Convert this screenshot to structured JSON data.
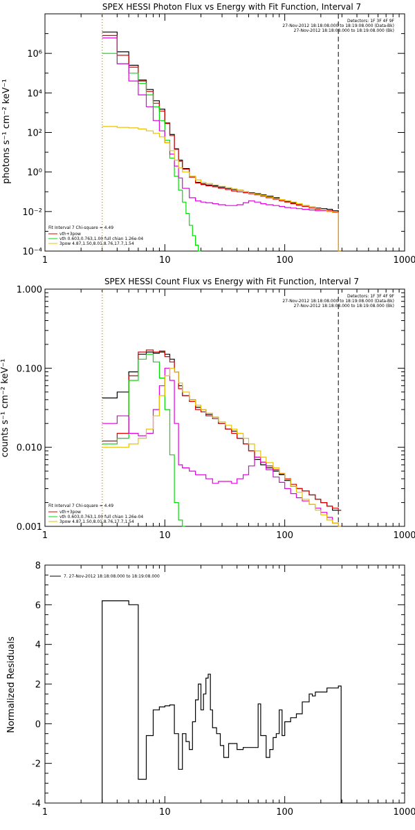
{
  "chart_data": [
    {
      "type": "line",
      "title": "SPEX HESSI Photon Flux vs Energy with Fit Function, Interval 7",
      "ylabel": "photons s⁻¹ cm⁻² keV⁻¹",
      "xlabel": "",
      "xscale": "log",
      "yscale": "log",
      "xlim": [
        1,
        1000
      ],
      "ylim": [
        0.0001,
        100000000
      ],
      "x_ticks": [
        "1",
        "10",
        "100",
        "1000"
      ],
      "y_ticks": [
        "10⁻⁴",
        "10⁻²",
        "10⁰",
        "10²",
        "10⁴",
        "10⁶"
      ],
      "info": [
        "Detectors: 1F 3F 4F 9F",
        "27-Nov-2012 18:18:08.000 to 18:19:08.000 (Data-Bk)",
        "27-Nov-2012 18:18:08.000 to 18:19:08.000 (Bk)"
      ],
      "fit_legend": [
        "Fit Interval 7   Chi-square = 4.49",
        "vth+3pow",
        "vth 0.603,0.763,1.00  full chian 1.26e-04",
        "3pow 4.87,1.50,8.01,8.76,17.7,1.54"
      ],
      "vlines": [
        {
          "x": 3,
          "style": "dotted",
          "color": "#000000"
        },
        {
          "x": 3,
          "style": "dotted",
          "color": "#e8a000"
        },
        {
          "x": 280,
          "style": "dashed",
          "color": "#000000"
        }
      ],
      "series": [
        {
          "color": "#000000",
          "x": [
            3,
            3.4,
            4,
            5,
            6,
            7,
            8,
            9,
            10,
            11,
            12,
            13,
            14,
            16,
            18,
            20,
            22,
            25,
            28,
            32,
            36,
            40,
            45,
            50,
            56,
            63,
            70,
            80,
            90,
            100,
            112,
            125,
            140,
            160,
            180,
            200,
            225,
            250,
            280
          ],
          "y": [
            12000000,
            12000000,
            1200000,
            250000,
            45000,
            15000,
            4000,
            1500,
            300,
            80,
            15,
            4,
            1.5,
            0.6,
            0.3,
            0.25,
            0.22,
            0.2,
            0.17,
            0.15,
            0.13,
            0.12,
            0.1,
            0.09,
            0.08,
            0.07,
            0.06,
            0.05,
            0.04,
            0.033,
            0.028,
            0.024,
            0.02,
            0.017,
            0.015,
            0.014,
            0.013,
            0.011,
            0.0001
          ]
        },
        {
          "color": "#e00000",
          "x": [
            3,
            3.4,
            4,
            5,
            6,
            7,
            8,
            9,
            10,
            11,
            12,
            13,
            14,
            16,
            18,
            20,
            22,
            25,
            28,
            32,
            36,
            40,
            45,
            50,
            56,
            63,
            70,
            80,
            90,
            100,
            112,
            125,
            140,
            160,
            180,
            200,
            225,
            250,
            280
          ],
          "y": [
            8000000,
            8000000,
            800000,
            200000,
            40000,
            12000,
            3000,
            1200,
            280,
            70,
            14,
            3.5,
            1.4,
            0.55,
            0.28,
            0.23,
            0.2,
            0.18,
            0.15,
            0.13,
            0.11,
            0.1,
            0.09,
            0.08,
            0.07,
            0.06,
            0.05,
            0.042,
            0.035,
            0.03,
            0.025,
            0.021,
            0.018,
            0.015,
            0.013,
            0.012,
            0.011,
            0.0095,
            0.0001
          ]
        },
        {
          "color": "#00dd00",
          "x": [
            3,
            3.4,
            4,
            5,
            6,
            7,
            8,
            9,
            10,
            11,
            12,
            13,
            14,
            15,
            16,
            17,
            18,
            19
          ],
          "y": [
            1000000,
            1000000,
            300000,
            100000,
            30000,
            8000,
            2000,
            400,
            40,
            5,
            0.6,
            0.12,
            0.03,
            0.008,
            0.002,
            0.0006,
            0.0002,
            0.0001
          ]
        },
        {
          "color": "#e000e0",
          "x": [
            3,
            3.4,
            4,
            5,
            6,
            7,
            8,
            9,
            10,
            11,
            12,
            13,
            14,
            16,
            18,
            20,
            22,
            25,
            28,
            32,
            36,
            40,
            45,
            50,
            56,
            63,
            70,
            80,
            90,
            100,
            112,
            125,
            140,
            160,
            180,
            200,
            225,
            250,
            280
          ],
          "y": [
            6000000,
            6000000,
            300000,
            40000,
            8000,
            2000,
            400,
            120,
            30,
            8,
            2,
            0.5,
            0.15,
            0.05,
            0.035,
            0.03,
            0.028,
            0.025,
            0.022,
            0.02,
            0.02,
            0.022,
            0.028,
            0.035,
            0.03,
            0.025,
            0.022,
            0.02,
            0.018,
            0.016,
            0.015,
            0.014,
            0.013,
            0.012,
            0.011,
            0.011,
            0.01,
            0.009,
            0.0001
          ]
        },
        {
          "color": "#e8c000",
          "x": [
            3,
            4,
            5,
            6,
            7,
            8,
            9,
            10,
            11,
            12,
            13,
            14,
            16,
            18,
            20,
            22,
            25,
            28,
            32,
            36,
            40,
            45,
            50,
            56,
            63,
            70,
            80,
            90,
            100,
            112,
            125,
            140,
            160,
            180,
            200,
            225,
            250,
            280
          ],
          "y": [
            200,
            180,
            170,
            150,
            120,
            90,
            60,
            30,
            12,
            4,
            1.6,
            1,
            0.6,
            0.4,
            0.3,
            0.26,
            0.22,
            0.19,
            0.16,
            0.14,
            0.12,
            0.1,
            0.085,
            0.075,
            0.065,
            0.055,
            0.045,
            0.04,
            0.035,
            0.03,
            0.025,
            0.02,
            0.017,
            0.014,
            0.012,
            0.01,
            0.009,
            0.0001
          ]
        }
      ]
    },
    {
      "type": "line",
      "title": "SPEX HESSI Count Flux vs Energy with Fit Function, Interval 7",
      "ylabel": "counts s⁻¹ cm⁻² keV⁻¹",
      "xlabel": "",
      "xscale": "log",
      "yscale": "log",
      "xlim": [
        1,
        1000
      ],
      "ylim": [
        0.001,
        1
      ],
      "x_ticks": [
        "1",
        "10",
        "100",
        "1000"
      ],
      "y_ticks": [
        "0.001",
        "0.010",
        "0.100",
        "1.000"
      ],
      "info": [
        "Detectors: 1F 3F 4F 9F",
        "27-Nov-2012 18:18:08.000 to 18:19:08.000 (Data-Bk)",
        "27-Nov-2012 18:18:08.000 to 18:19:08.000 (Bk)"
      ],
      "fit_legend": [
        "Fit Interval 7   Chi-square = 4.49",
        "vth+3pow",
        "vth 0.603,0.763,1.00  full chian 1.26e-04",
        "3pow 4.87,1.50,8.01,8.76,17.7,1.54"
      ],
      "vlines": [
        {
          "x": 3,
          "style": "dotted",
          "color": "#000000"
        },
        {
          "x": 3,
          "style": "dotted",
          "color": "#e8a000"
        },
        {
          "x": 280,
          "style": "dashed",
          "color": "#000000"
        }
      ],
      "series": [
        {
          "color": "#000000",
          "x": [
            3,
            4,
            5,
            6,
            7,
            8,
            9,
            10,
            11,
            12,
            13,
            14,
            16,
            18,
            20,
            22,
            25,
            28,
            32,
            36,
            40,
            45,
            50,
            56,
            63,
            70,
            80,
            90,
            100,
            112,
            125,
            140,
            160,
            180,
            200,
            225,
            250,
            280
          ],
          "y": [
            0.042,
            0.05,
            0.09,
            0.15,
            0.16,
            0.155,
            0.16,
            0.15,
            0.13,
            0.09,
            0.06,
            0.045,
            0.04,
            0.032,
            0.03,
            0.026,
            0.024,
            0.02,
            0.017,
            0.016,
            0.013,
            0.011,
            0.009,
            0.007,
            0.006,
            0.0055,
            0.005,
            0.0045,
            0.0038,
            0.0032,
            0.003,
            0.0028,
            0.0025,
            0.0022,
            0.002,
            0.0018,
            0.0016,
            0.0016
          ]
        },
        {
          "color": "#e00000",
          "x": [
            3,
            4,
            5,
            6,
            7,
            8,
            9,
            10,
            11,
            12,
            13,
            14,
            16,
            18,
            20,
            22,
            25,
            28,
            32,
            36,
            40,
            45,
            50,
            56,
            63,
            70,
            80,
            90,
            100,
            112,
            125,
            140,
            160,
            180,
            200,
            225,
            250,
            280
          ],
          "y": [
            0.012,
            0.015,
            0.08,
            0.16,
            0.17,
            0.16,
            0.165,
            0.14,
            0.12,
            0.09,
            0.055,
            0.045,
            0.038,
            0.03,
            0.028,
            0.025,
            0.023,
            0.02,
            0.017,
            0.015,
            0.013,
            0.011,
            0.009,
            0.0075,
            0.0065,
            0.0058,
            0.0052,
            0.0046,
            0.004,
            0.0034,
            0.003,
            0.0028,
            0.0025,
            0.0022,
            0.002,
            0.0018,
            0.0017,
            0.0016
          ]
        },
        {
          "color": "#00dd00",
          "x": [
            3,
            4,
            5,
            6,
            7,
            8,
            9,
            10,
            11,
            12,
            13,
            14
          ],
          "y": [
            0.011,
            0.013,
            0.07,
            0.13,
            0.15,
            0.12,
            0.075,
            0.03,
            0.008,
            0.002,
            0.0012,
            0.001
          ]
        },
        {
          "color": "#e000e0",
          "x": [
            3,
            4,
            5,
            6,
            7,
            8,
            9,
            10,
            11,
            12,
            13,
            14,
            16,
            18,
            20,
            22,
            25,
            28,
            32,
            36,
            40,
            45,
            50,
            56,
            63,
            70,
            80,
            90,
            100,
            112,
            125,
            140,
            160,
            180,
            200,
            225,
            250,
            280
          ],
          "y": [
            0.02,
            0.025,
            0.015,
            0.014,
            0.015,
            0.03,
            0.06,
            0.1,
            0.07,
            0.02,
            0.006,
            0.0055,
            0.005,
            0.0045,
            0.0045,
            0.004,
            0.0035,
            0.0037,
            0.0037,
            0.0035,
            0.004,
            0.0045,
            0.0058,
            0.0075,
            0.0065,
            0.0052,
            0.0042,
            0.0036,
            0.003,
            0.0026,
            0.0023,
            0.0021,
            0.0019,
            0.0017,
            0.0015,
            0.0013,
            0.0011,
            0.001
          ]
        },
        {
          "color": "#e8c000",
          "x": [
            3,
            4,
            5,
            6,
            7,
            8,
            9,
            10,
            11,
            12,
            13,
            14,
            16,
            18,
            20,
            22,
            25,
            28,
            32,
            36,
            40,
            45,
            50,
            56,
            63,
            70,
            80,
            90,
            100,
            112,
            125,
            140,
            160,
            180,
            200,
            225,
            250,
            280
          ],
          "y": [
            0.01,
            0.01,
            0.011,
            0.013,
            0.017,
            0.025,
            0.045,
            0.08,
            0.1,
            0.09,
            0.065,
            0.05,
            0.04,
            0.034,
            0.03,
            0.027,
            0.024,
            0.021,
            0.019,
            0.017,
            0.015,
            0.013,
            0.011,
            0.009,
            0.0075,
            0.0064,
            0.0055,
            0.0047,
            0.0039,
            0.0032,
            0.0027,
            0.0022,
            0.0019,
            0.0016,
            0.0014,
            0.0012,
            0.0011,
            0.001
          ]
        }
      ]
    },
    {
      "type": "line",
      "title": "",
      "ylabel": "Normalized Residuals",
      "xlabel": "",
      "xscale": "log",
      "yscale": "linear",
      "xlim": [
        1,
        1000
      ],
      "ylim": [
        -4,
        8
      ],
      "x_ticks": [
        "1",
        "10",
        "100",
        "1000"
      ],
      "y_ticks": [
        "-4",
        "-2",
        "0",
        "2",
        "4",
        "6",
        "8"
      ],
      "legend": [
        "7. 27-Nov-2012 18:18:08.000 to 18:19:08.000"
      ],
      "series": [
        {
          "color": "#000000",
          "x": [
            3,
            4,
            5,
            6,
            7,
            8,
            9,
            10,
            11,
            12,
            13,
            14,
            15,
            16,
            17,
            18,
            19,
            20,
            21,
            22,
            23,
            24,
            25,
            27,
            29,
            31,
            34,
            37,
            40,
            45,
            50,
            56,
            60,
            63,
            70,
            75,
            80,
            85,
            90,
            95,
            100,
            112,
            125,
            140,
            150,
            160,
            170,
            180,
            200,
            225,
            250,
            280
          ],
          "y": [
            6.2,
            6.2,
            6.0,
            -2.8,
            -0.6,
            0.7,
            0.85,
            0.9,
            0.95,
            -0.5,
            -2.3,
            -0.5,
            -0.9,
            -1.3,
            0.1,
            1.2,
            2.0,
            0.7,
            1.5,
            2.3,
            2.5,
            0.7,
            -0.2,
            -0.5,
            -1.1,
            -1.7,
            -1.0,
            -1.0,
            -1.3,
            -1.2,
            -1.2,
            -1.2,
            1.0,
            -0.6,
            -1.7,
            -1.3,
            -0.7,
            -0.5,
            0.7,
            -0.6,
            0.1,
            0.3,
            0.5,
            1.1,
            1.1,
            1.5,
            1.4,
            1.6,
            1.6,
            1.8,
            1.8,
            1.9
          ]
        }
      ]
    }
  ]
}
